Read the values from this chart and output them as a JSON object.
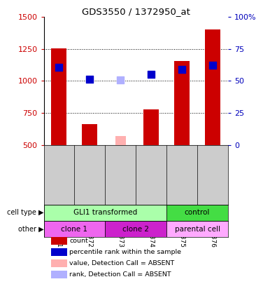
{
  "title": "GDS3550 / 1372950_at",
  "samples": [
    "GSM303371",
    "GSM303372",
    "GSM303373",
    "GSM303374",
    "GSM303375",
    "GSM303376"
  ],
  "bar_values": [
    1255,
    660,
    null,
    780,
    1155,
    1400
  ],
  "bar_absent": [
    null,
    null,
    570,
    null,
    null,
    null
  ],
  "dot_values": [
    1105,
    1015,
    null,
    1050,
    1090,
    1120
  ],
  "dot_absent": [
    null,
    null,
    1005,
    null,
    null,
    null
  ],
  "bar_color": "#cc0000",
  "bar_absent_color": "#ffb0b0",
  "dot_color": "#0000cc",
  "dot_absent_color": "#b0b0ff",
  "ymin": 500,
  "ymax": 1500,
  "yticks": [
    500,
    750,
    1000,
    1250,
    1500
  ],
  "y2ticks": [
    0,
    25,
    50,
    75,
    100
  ],
  "y2labels": [
    "0",
    "25",
    "50",
    "75",
    "100%"
  ],
  "cell_type_groups": [
    {
      "label": "GLI1 transformed",
      "start": 0,
      "end": 4,
      "color": "#aaffaa"
    },
    {
      "label": "control",
      "start": 4,
      "end": 6,
      "color": "#44dd44"
    }
  ],
  "other_groups": [
    {
      "label": "clone 1",
      "start": 0,
      "end": 2,
      "color": "#ee66ee"
    },
    {
      "label": "clone 2",
      "start": 2,
      "end": 4,
      "color": "#cc22cc"
    },
    {
      "label": "parental cell",
      "start": 4,
      "end": 6,
      "color": "#ffaaff"
    }
  ],
  "cell_type_label": "cell type",
  "other_label": "other",
  "legend_items": [
    {
      "label": "count",
      "color": "#cc0000"
    },
    {
      "label": "percentile rank within the sample",
      "color": "#0000cc"
    },
    {
      "label": "value, Detection Call = ABSENT",
      "color": "#ffb0b0"
    },
    {
      "label": "rank, Detection Call = ABSENT",
      "color": "#b0b0ff"
    }
  ],
  "bar_width": 0.5,
  "dot_size": 60,
  "ylabel_color": "#cc0000",
  "y2label_color": "#0000bb",
  "xlabel_panel_color": "#cccccc",
  "grid_dotted_at": [
    750,
    1000,
    1250
  ]
}
